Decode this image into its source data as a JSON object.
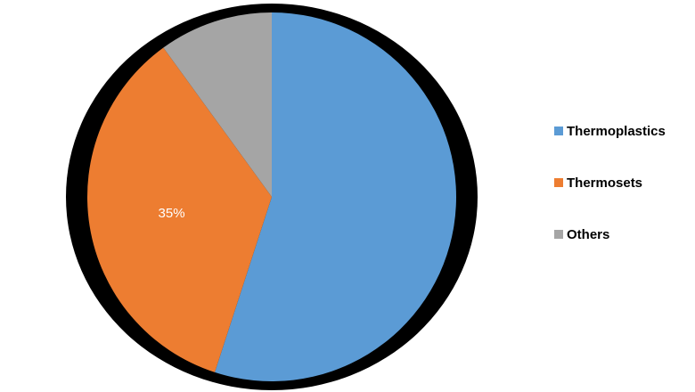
{
  "chart_data": {
    "type": "pie",
    "title": "",
    "categories": [
      "Thermoplastics",
      "Thermosets",
      "Others"
    ],
    "values": [
      55,
      35,
      10
    ],
    "colors": [
      "#5b9bd5",
      "#ed7d31",
      "#a5a5a5"
    ],
    "data_labels": [
      "",
      "35%",
      ""
    ],
    "legend_position": "right",
    "start_angle_deg": 0,
    "direction": "clockwise"
  }
}
